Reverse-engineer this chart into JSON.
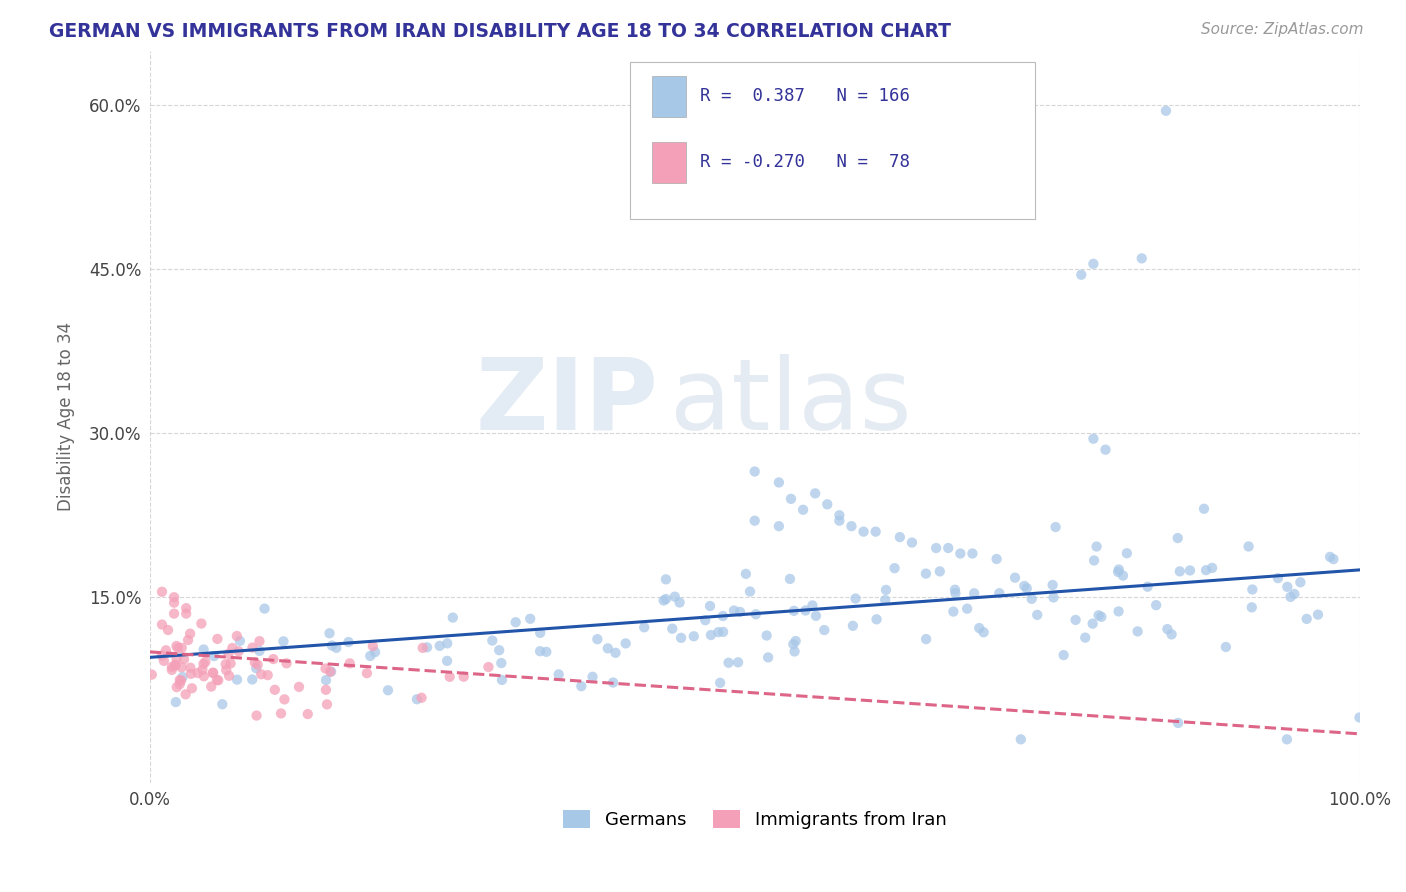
{
  "title": "GERMAN VS IMMIGRANTS FROM IRAN DISABILITY AGE 18 TO 34 CORRELATION CHART",
  "source_text": "Source: ZipAtlas.com",
  "ylabel": "Disability Age 18 to 34",
  "xlim": [
    0.0,
    1.0
  ],
  "ylim": [
    -0.02,
    0.65
  ],
  "y_tick_values": [
    0.15,
    0.3,
    0.45,
    0.6
  ],
  "watermark_zip": "ZIP",
  "watermark_atlas": "atlas",
  "blue_color": "#a8c8e8",
  "pink_color": "#f4a0b8",
  "line_blue": "#2255aa",
  "line_pink": "#dd6688",
  "title_color": "#333399",
  "label_color": "#666666",
  "background_color": "#ffffff",
  "grid_color": "#cccccc",
  "legend_label1": "Germans",
  "legend_label2": "Immigrants from Iran",
  "blue_line_x0": 0.0,
  "blue_line_y0": 0.095,
  "blue_line_x1": 1.0,
  "blue_line_y1": 0.175,
  "pink_line_x0": 0.0,
  "pink_line_y0": 0.1,
  "pink_line_x1": 0.4,
  "pink_line_y1": 0.07
}
